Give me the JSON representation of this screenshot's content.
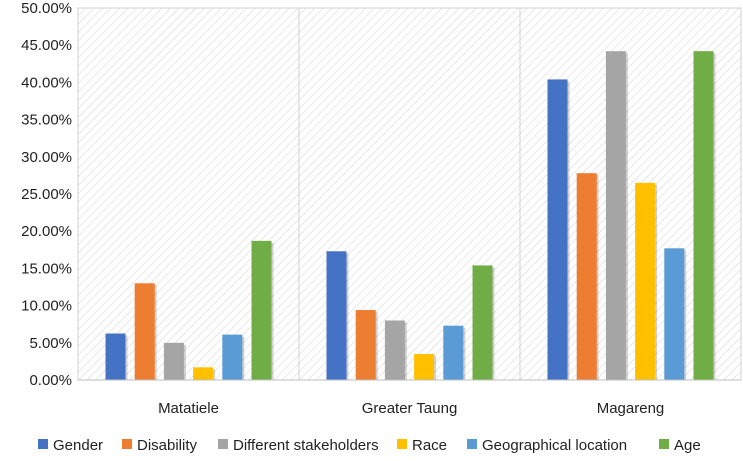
{
  "chart_data": {
    "type": "bar",
    "categories": [
      "Matatiele",
      "Greater Taung",
      "Magareng"
    ],
    "series": [
      {
        "name": "Gender",
        "color": "#4472C4",
        "values": [
          6.25,
          17.3,
          40.4
        ]
      },
      {
        "name": "Disability",
        "color": "#ED7D31",
        "values": [
          13.0,
          9.4,
          27.8
        ]
      },
      {
        "name": "Different stakeholders",
        "color": "#A5A5A5",
        "values": [
          5.0,
          8.0,
          44.2
        ]
      },
      {
        "name": "Race",
        "color": "#FFC000",
        "values": [
          1.7,
          3.5,
          26.5
        ]
      },
      {
        "name": "Geographical location",
        "color": "#5B9BD5",
        "values": [
          6.1,
          7.3,
          17.7
        ]
      },
      {
        "name": "Age",
        "color": "#70AD47",
        "values": [
          18.7,
          15.4,
          44.2
        ]
      }
    ],
    "ylim": [
      0,
      50
    ],
    "yticks": [
      0,
      5,
      10,
      15,
      20,
      25,
      30,
      35,
      40,
      45,
      50
    ],
    "ytick_labels": [
      "0.00%",
      "5.00%",
      "10.00%",
      "15.00%",
      "20.00%",
      "25.00%",
      "30.00%",
      "35.00%",
      "40.00%",
      "45.00%",
      "50.00%"
    ],
    "grid": true,
    "legend": "bottom"
  }
}
